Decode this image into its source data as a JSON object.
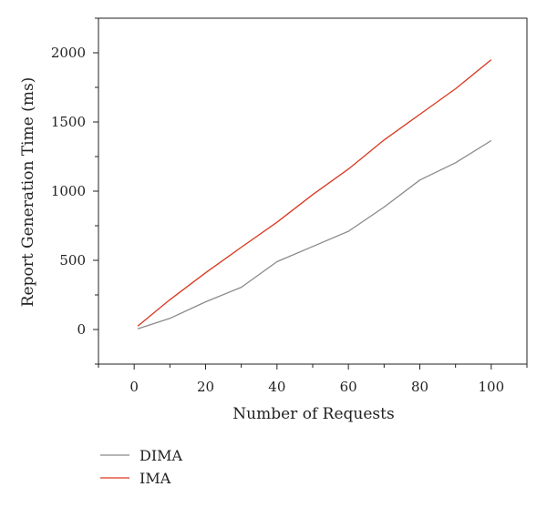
{
  "chart_data": {
    "type": "line",
    "title": "",
    "xlabel": "Number of Requests",
    "ylabel": "Report Generation Time (ms)",
    "xlim": [
      -10,
      110
    ],
    "ylim": [
      -250,
      2250
    ],
    "x_ticks": [
      0,
      20,
      40,
      60,
      80,
      100
    ],
    "y_ticks": [
      0,
      500,
      1000,
      1500,
      2000
    ],
    "grid": false,
    "legend_position": "bottom-left",
    "series": [
      {
        "name": "DIMA",
        "color": "#8a8a8a",
        "x": [
          1,
          10,
          20,
          30,
          40,
          50,
          60,
          70,
          80,
          90,
          100
        ],
        "y": [
          5,
          80,
          200,
          305,
          490,
          600,
          710,
          885,
          1080,
          1205,
          1365
        ]
      },
      {
        "name": "IMA",
        "color": "#d9381e",
        "x": [
          1,
          10,
          20,
          30,
          40,
          50,
          60,
          70,
          80,
          90,
          100
        ],
        "y": [
          25,
          215,
          410,
          595,
          775,
          975,
          1160,
          1370,
          1555,
          1740,
          1950
        ]
      }
    ]
  }
}
